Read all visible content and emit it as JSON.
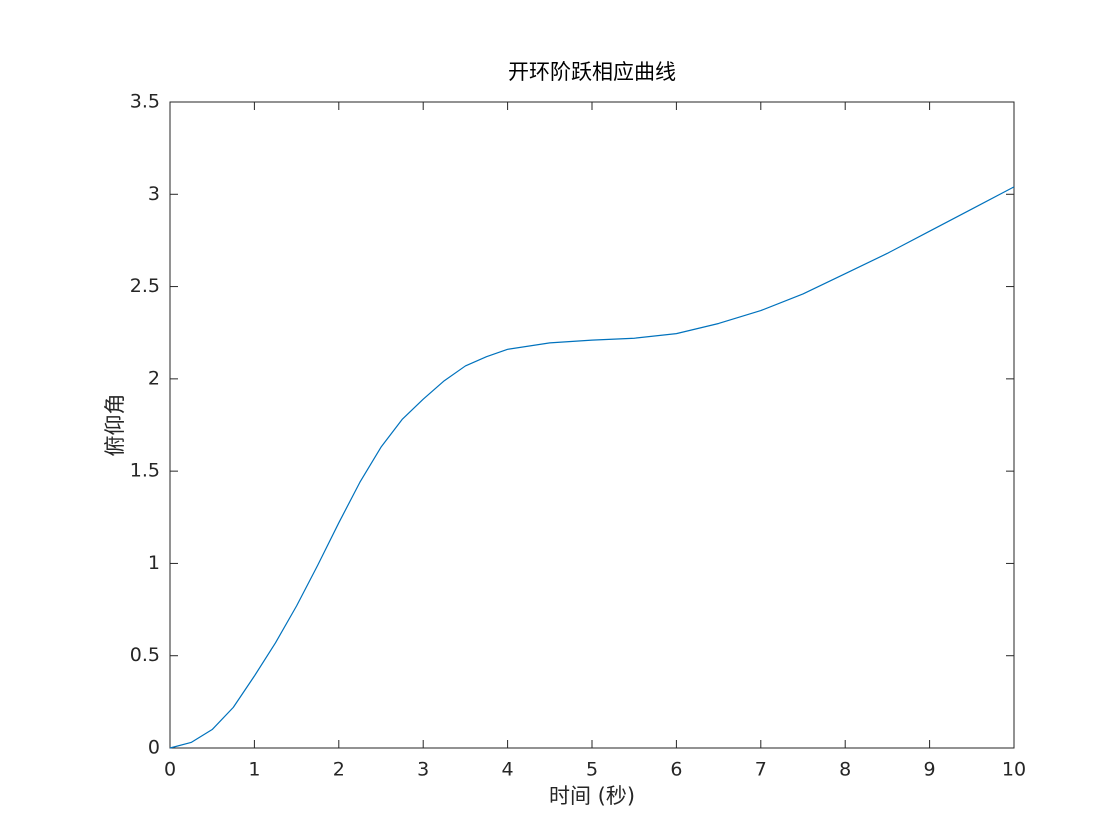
{
  "chart_data": {
    "type": "line",
    "title": "开环阶跃相应曲线",
    "x_label": "时间 (秒)",
    "y_label": "俯仰角",
    "x": [
      0,
      0.25,
      0.5,
      0.75,
      1,
      1.25,
      1.5,
      1.75,
      2,
      2.25,
      2.5,
      2.75,
      3,
      3.25,
      3.5,
      3.75,
      4,
      4.5,
      5,
      5.5,
      6,
      6.5,
      7,
      7.5,
      8,
      8.5,
      9,
      9.5,
      10
    ],
    "values": [
      0,
      0.03,
      0.1,
      0.22,
      0.39,
      0.57,
      0.77,
      0.99,
      1.22,
      1.44,
      1.63,
      1.78,
      1.89,
      1.99,
      2.07,
      2.12,
      2.16,
      2.195,
      2.21,
      2.22,
      2.245,
      2.3,
      2.37,
      2.46,
      2.57,
      2.68,
      2.8,
      2.92,
      3.04
    ],
    "color": "#0072bd",
    "xlim": [
      0,
      10
    ],
    "xticks": [
      0,
      1,
      2,
      3,
      4,
      5,
      6,
      7,
      8,
      9,
      10
    ],
    "ylim": [
      0,
      3.5
    ],
    "yticks": [
      0,
      0.5,
      1,
      1.5,
      2,
      2.5,
      3,
      3.5
    ],
    "grid": false
  }
}
